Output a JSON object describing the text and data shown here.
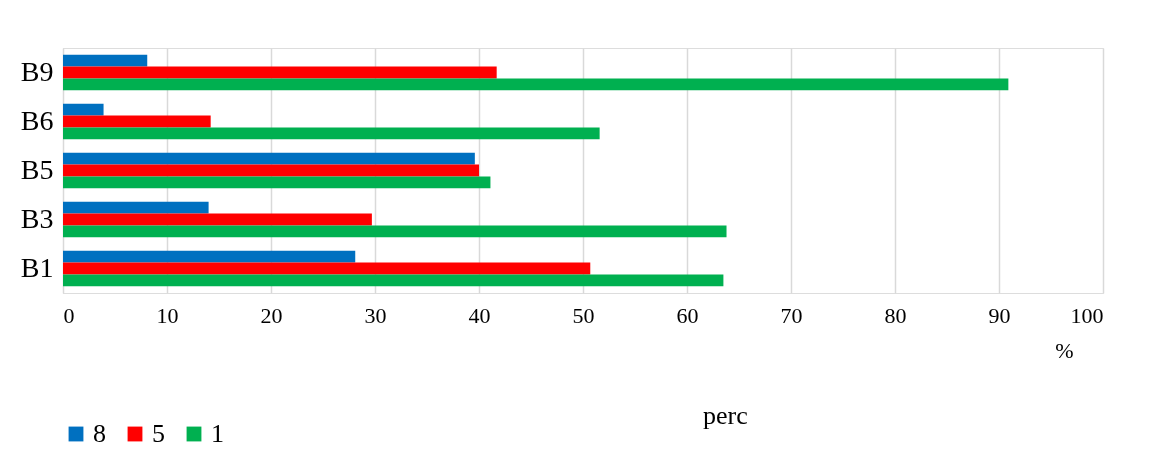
{
  "chart_data": {
    "type": "bar",
    "orientation": "horizontal",
    "categories": [
      "B9",
      "B6",
      "B5",
      "B3",
      "B1"
    ],
    "series": [
      {
        "name": "8",
        "color": "#0070c0",
        "values": [
          8.1,
          3.9,
          39.6,
          14.0,
          28.1
        ]
      },
      {
        "name": "5",
        "color": "#ff0000",
        "values": [
          41.7,
          14.2,
          40.0,
          29.7,
          50.7
        ]
      },
      {
        "name": "1",
        "color": "#00b050",
        "values": [
          90.9,
          51.6,
          41.1,
          63.8,
          63.5
        ]
      }
    ],
    "xlim": [
      0,
      100
    ],
    "xticks": [
      0,
      10,
      20,
      30,
      40,
      50,
      60,
      70,
      80,
      90,
      100
    ],
    "xlabel": "%",
    "grid": "x",
    "legend": "bottom",
    "annotations": [
      "perc"
    ]
  }
}
